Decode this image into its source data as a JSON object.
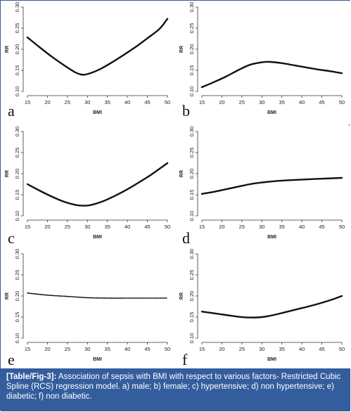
{
  "caption": {
    "label": "[Table/Fig-3]:",
    "text": "Association of sepsis with BMI with respect to various factors- Restricted Cubic Spline (RCS) regression model. a) male; b) female; c) hypertensive; d) non hypertensive; e) diabetic; f) non diabetic."
  },
  "chart_data": [
    {
      "panel": "a",
      "type": "line",
      "xlabel": "BMI",
      "ylabel": "RR",
      "xlim": [
        15,
        50
      ],
      "ylim": [
        0.1,
        0.3
      ],
      "xticks": [
        "15",
        "20",
        "25",
        "30",
        "35",
        "40",
        "45",
        "50"
      ],
      "yticks": [
        "0.10",
        "0.15",
        "0.20",
        "0.25",
        "0.30"
      ],
      "line_style": "solid",
      "x": [
        15,
        18,
        21,
        24,
        27,
        28.5,
        30,
        33,
        36,
        39,
        42,
        45,
        48,
        50
      ],
      "y": [
        0.228,
        0.205,
        0.183,
        0.163,
        0.145,
        0.14,
        0.141,
        0.152,
        0.168,
        0.186,
        0.205,
        0.226,
        0.248,
        0.272
      ]
    },
    {
      "panel": "b",
      "type": "line",
      "xlabel": "BMI",
      "ylabel": "RR",
      "xlim": [
        15,
        50
      ],
      "ylim": [
        0.1,
        0.3
      ],
      "xticks": [
        "15",
        "20",
        "25",
        "30",
        "35",
        "40",
        "45",
        "50"
      ],
      "yticks": [
        "0.10",
        "0.15",
        "0.20",
        "0.25",
        "0.30"
      ],
      "line_style": "solid",
      "x": [
        15,
        18,
        21,
        24,
        27,
        30,
        32,
        35,
        38,
        41,
        44,
        47,
        50
      ],
      "y": [
        0.11,
        0.122,
        0.135,
        0.15,
        0.163,
        0.169,
        0.17,
        0.167,
        0.162,
        0.157,
        0.152,
        0.148,
        0.143
      ]
    },
    {
      "panel": "c",
      "type": "line",
      "xlabel": "BMI",
      "ylabel": "RR",
      "xlim": [
        15,
        50
      ],
      "ylim": [
        0.1,
        0.3
      ],
      "xticks": [
        "15",
        "20",
        "25",
        "30",
        "35",
        "40",
        "45",
        "50"
      ],
      "yticks": [
        "0.10",
        "0.15",
        "0.20",
        "0.25",
        "0.30"
      ],
      "line_style": "solid",
      "x": [
        15,
        18,
        21,
        24,
        27,
        29,
        31,
        34,
        37,
        40,
        43,
        46,
        50
      ],
      "y": [
        0.175,
        0.16,
        0.146,
        0.134,
        0.126,
        0.124,
        0.126,
        0.135,
        0.148,
        0.163,
        0.18,
        0.198,
        0.225
      ]
    },
    {
      "panel": "d",
      "type": "line",
      "xlabel": "BMI",
      "ylabel": "RR",
      "xlim": [
        15,
        50
      ],
      "ylim": [
        0.1,
        0.3
      ],
      "xticks": [
        "15",
        "20",
        "25",
        "30",
        "35",
        "40",
        "45",
        "50"
      ],
      "yticks": [
        "0.10",
        "0.15",
        "0.20",
        "0.25",
        "0.30"
      ],
      "line_style": "solid",
      "x": [
        15,
        18,
        21,
        24,
        27,
        30,
        33,
        36,
        40,
        45,
        50
      ],
      "y": [
        0.152,
        0.157,
        0.163,
        0.169,
        0.175,
        0.179,
        0.182,
        0.184,
        0.186,
        0.188,
        0.19
      ]
    },
    {
      "panel": "e",
      "type": "line",
      "xlabel": "BMI",
      "ylabel": "RR",
      "xlim": [
        15,
        50
      ],
      "ylim": [
        0.1,
        0.3
      ],
      "xticks": [
        "15",
        "20",
        "25",
        "30",
        "35",
        "40",
        "45",
        "50"
      ],
      "yticks": [
        "0.10",
        "0.15",
        "0.20",
        "0.25",
        "0.30"
      ],
      "line_style": "dashed",
      "x": [
        15,
        20,
        25,
        30,
        35,
        40,
        45,
        50
      ],
      "y": [
        0.207,
        0.202,
        0.199,
        0.196,
        0.195,
        0.195,
        0.195,
        0.195
      ]
    },
    {
      "panel": "f",
      "type": "line",
      "xlabel": "BMI",
      "ylabel": "RR",
      "xlim": [
        15,
        50
      ],
      "ylim": [
        0.1,
        0.3
      ],
      "xticks": [
        "15",
        "20",
        "25",
        "30",
        "35",
        "40",
        "45",
        "50"
      ],
      "yticks": [
        "0.10",
        "0.15",
        "0.20",
        "0.25",
        "0.30"
      ],
      "line_style": "solid",
      "x": [
        15,
        18,
        21,
        24,
        27,
        30,
        33,
        36,
        39,
        42,
        45,
        48,
        50
      ],
      "y": [
        0.163,
        0.159,
        0.155,
        0.151,
        0.149,
        0.15,
        0.155,
        0.162,
        0.169,
        0.176,
        0.184,
        0.193,
        0.2
      ]
    }
  ]
}
